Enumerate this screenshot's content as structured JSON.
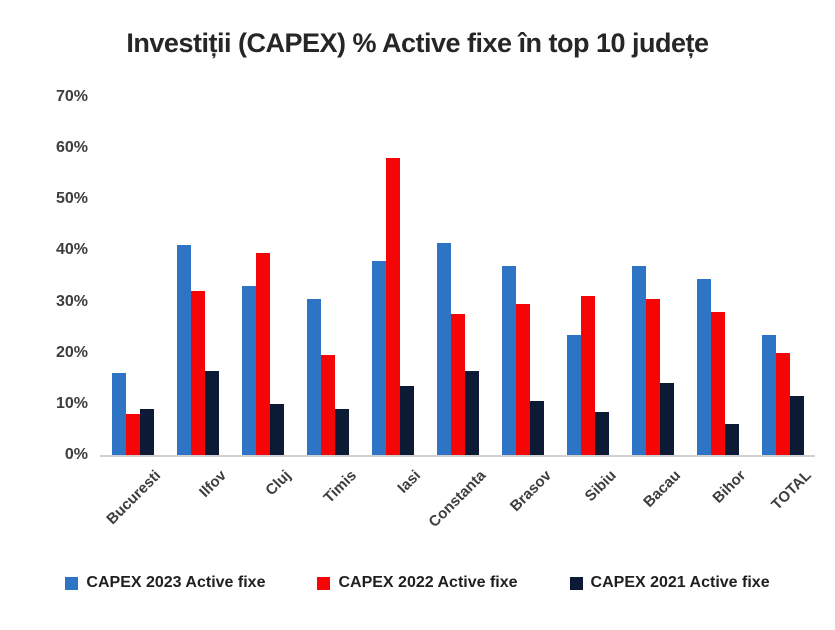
{
  "chart_data": {
    "type": "bar",
    "title": "Investiții (CAPEX) % Active fixe în top 10 județe",
    "categories": [
      "Bucuresti",
      "Ilfov",
      "Cluj",
      "Timis",
      "Iasi",
      "Constanta",
      "Brasov",
      "Sibiu",
      "Bacau",
      "Bihor",
      "TOTAL"
    ],
    "series": [
      {
        "name": "CAPEX 2023 Active fixe",
        "color": "#2E74C4",
        "values": [
          16,
          41,
          33,
          30.5,
          38,
          41.5,
          37,
          23.5,
          37,
          34.5,
          23.5
        ]
      },
      {
        "name": "CAPEX 2022 Active fixe",
        "color": "#F50505",
        "values": [
          8,
          32,
          39.5,
          19.5,
          58,
          27.5,
          29.5,
          31,
          30.5,
          28,
          20
        ]
      },
      {
        "name": "CAPEX 2021 Active fixe",
        "color": "#0C1A35",
        "values": [
          9,
          16.5,
          10,
          9,
          13.5,
          16.5,
          10.5,
          8.5,
          14,
          6,
          11.5
        ]
      }
    ],
    "xlabel": "",
    "ylabel": "",
    "ylim": [
      0,
      70
    ],
    "yticks": [
      "0%",
      "10%",
      "20%",
      "30%",
      "40%",
      "50%",
      "60%",
      "70%"
    ],
    "grid": false,
    "legend_position": "bottom"
  },
  "colors": {
    "axis_line": "#d0d0d0",
    "text": "#3d3d3d"
  }
}
